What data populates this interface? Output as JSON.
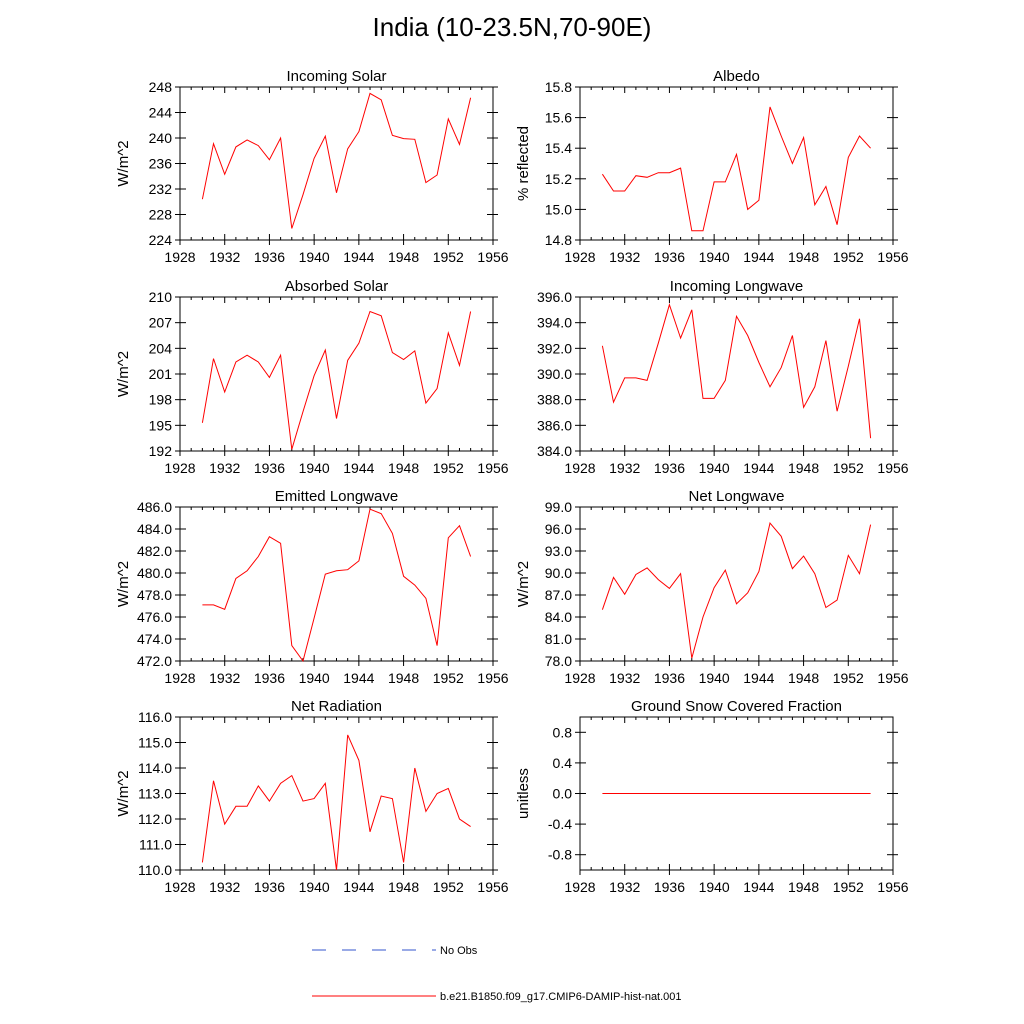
{
  "figure_title": "India (10-23.5N,70-90E)",
  "legend": {
    "entries": [
      {
        "label": "No Obs",
        "color": "#3355cc",
        "style": "dashed"
      },
      {
        "label": "b.e21.B1850.f09_g17.CMIP6-DAMIP-hist-nat.001",
        "color": "#ff0000",
        "style": "solid"
      }
    ]
  },
  "chart_data": [
    {
      "type": "line",
      "title": "Incoming Solar",
      "ylabel": "W/m^2",
      "xlim": [
        1928,
        1956
      ],
      "ylim": [
        224,
        248
      ],
      "xticks": [
        "1928",
        "1932",
        "1936",
        "1940",
        "1944",
        "1948",
        "1952",
        "1956"
      ],
      "yticks": [
        "224",
        "228",
        "232",
        "236",
        "240",
        "244",
        "248"
      ],
      "x": [
        1930,
        1931,
        1932,
        1933,
        1934,
        1935,
        1936,
        1937,
        1938,
        1939,
        1940,
        1941,
        1942,
        1943,
        1944,
        1945,
        1946,
        1947,
        1948,
        1949,
        1950,
        1951,
        1952,
        1953,
        1954
      ],
      "series": [
        {
          "color": "#ff0000",
          "values": [
            230.4,
            239.1,
            234.3,
            238.6,
            239.7,
            238.8,
            236.6,
            240.0,
            225.8,
            231.1,
            236.8,
            240.3,
            231.4,
            238.3,
            241.0,
            247.0,
            246.0,
            240.4,
            239.9,
            239.8,
            233.0,
            234.2,
            243.0,
            239.0,
            246.3
          ]
        }
      ]
    },
    {
      "type": "line",
      "title": "Albedo",
      "ylabel": "% reflected",
      "xlim": [
        1928,
        1956
      ],
      "ylim": [
        14.8,
        15.8
      ],
      "xticks": [
        "1928",
        "1932",
        "1936",
        "1940",
        "1944",
        "1948",
        "1952",
        "1956"
      ],
      "yticks": [
        "14.8",
        "15.0",
        "15.2",
        "15.4",
        "15.6",
        "15.8"
      ],
      "x": [
        1930,
        1931,
        1932,
        1933,
        1934,
        1935,
        1936,
        1937,
        1938,
        1939,
        1940,
        1941,
        1942,
        1943,
        1944,
        1945,
        1946,
        1947,
        1948,
        1949,
        1950,
        1951,
        1952,
        1953,
        1954
      ],
      "series": [
        {
          "color": "#ff0000",
          "values": [
            15.23,
            15.12,
            15.12,
            15.22,
            15.21,
            15.24,
            15.24,
            15.27,
            14.86,
            14.86,
            15.18,
            15.18,
            15.36,
            15.0,
            15.06,
            15.67,
            15.48,
            15.3,
            15.47,
            15.03,
            15.15,
            14.9,
            15.34,
            15.48,
            15.4
          ]
        }
      ]
    },
    {
      "type": "line",
      "title": "Absorbed Solar",
      "ylabel": "W/m^2",
      "xlim": [
        1928,
        1956
      ],
      "ylim": [
        192,
        210
      ],
      "xticks": [
        "1928",
        "1932",
        "1936",
        "1940",
        "1944",
        "1948",
        "1952",
        "1956"
      ],
      "yticks": [
        "192",
        "195",
        "198",
        "201",
        "204",
        "207",
        "210"
      ],
      "x": [
        1930,
        1931,
        1932,
        1933,
        1934,
        1935,
        1936,
        1937,
        1938,
        1939,
        1940,
        1941,
        1942,
        1943,
        1944,
        1945,
        1946,
        1947,
        1948,
        1949,
        1950,
        1951,
        1952,
        1953,
        1954
      ],
      "series": [
        {
          "color": "#ff0000",
          "values": [
            195.3,
            202.8,
            198.9,
            202.4,
            203.2,
            202.4,
            200.6,
            203.2,
            192.2,
            196.6,
            200.8,
            203.8,
            195.8,
            202.6,
            204.6,
            208.3,
            207.8,
            203.5,
            202.7,
            203.7,
            197.6,
            199.3,
            205.8,
            202.0,
            208.3
          ]
        }
      ]
    },
    {
      "type": "line",
      "title": "Incoming Longwave",
      "ylabel": "",
      "xlim": [
        1928,
        1956
      ],
      "ylim": [
        384,
        396
      ],
      "xticks": [
        "1928",
        "1932",
        "1936",
        "1940",
        "1944",
        "1948",
        "1952",
        "1956"
      ],
      "yticks": [
        "384.0",
        "386.0",
        "388.0",
        "390.0",
        "392.0",
        "394.0",
        "396.0"
      ],
      "x": [
        1930,
        1931,
        1932,
        1933,
        1934,
        1935,
        1936,
        1937,
        1938,
        1939,
        1940,
        1941,
        1942,
        1943,
        1944,
        1945,
        1946,
        1947,
        1948,
        1949,
        1950,
        1951,
        1952,
        1953,
        1954
      ],
      "series": [
        {
          "color": "#ff0000",
          "values": [
            392.2,
            387.8,
            389.7,
            389.7,
            389.5,
            392.4,
            395.4,
            392.8,
            395.0,
            388.1,
            388.1,
            389.5,
            394.5,
            393.0,
            390.9,
            389.0,
            390.5,
            393.0,
            387.4,
            389.0,
            392.6,
            387.1,
            390.6,
            394.3,
            385.0
          ]
        }
      ]
    },
    {
      "type": "line",
      "title": "Emitted Longwave",
      "ylabel": "W/m^2",
      "xlim": [
        1928,
        1956
      ],
      "ylim": [
        472,
        486
      ],
      "xticks": [
        "1928",
        "1932",
        "1936",
        "1940",
        "1944",
        "1948",
        "1952",
        "1956"
      ],
      "yticks": [
        "472.0",
        "474.0",
        "476.0",
        "478.0",
        "480.0",
        "482.0",
        "484.0",
        "486.0"
      ],
      "x": [
        1930,
        1931,
        1932,
        1933,
        1934,
        1935,
        1936,
        1937,
        1938,
        1939,
        1940,
        1941,
        1942,
        1943,
        1944,
        1945,
        1946,
        1947,
        1948,
        1949,
        1950,
        1951,
        1952,
        1953,
        1954
      ],
      "series": [
        {
          "color": "#ff0000",
          "values": [
            477.1,
            477.1,
            476.7,
            479.5,
            480.2,
            481.5,
            483.3,
            482.7,
            473.4,
            472.0,
            475.9,
            479.9,
            480.2,
            480.3,
            481.1,
            485.8,
            485.4,
            483.6,
            479.7,
            478.9,
            477.7,
            473.4,
            483.2,
            484.3,
            481.5
          ]
        }
      ]
    },
    {
      "type": "line",
      "title": "Net Longwave",
      "ylabel": "W/m^2",
      "xlim": [
        1928,
        1956
      ],
      "ylim": [
        78,
        99
      ],
      "xticks": [
        "1928",
        "1932",
        "1936",
        "1940",
        "1944",
        "1948",
        "1952",
        "1956"
      ],
      "yticks": [
        "78.0",
        "81.0",
        "84.0",
        "87.0",
        "90.0",
        "93.0",
        "96.0",
        "99.0"
      ],
      "x": [
        1930,
        1931,
        1932,
        1933,
        1934,
        1935,
        1936,
        1937,
        1938,
        1939,
        1940,
        1941,
        1942,
        1943,
        1944,
        1945,
        1946,
        1947,
        1948,
        1949,
        1950,
        1951,
        1952,
        1953,
        1954
      ],
      "series": [
        {
          "color": "#ff0000",
          "values": [
            85.0,
            89.4,
            87.1,
            89.8,
            90.7,
            89.1,
            87.9,
            89.9,
            78.4,
            84.0,
            88.0,
            90.4,
            85.8,
            87.3,
            90.2,
            96.8,
            95.0,
            90.6,
            92.3,
            89.9,
            85.3,
            86.3,
            92.4,
            89.9,
            96.6
          ]
        }
      ]
    },
    {
      "type": "line",
      "title": "Net Radiation",
      "ylabel": "W/m^2",
      "xlim": [
        1928,
        1956
      ],
      "ylim": [
        110,
        116
      ],
      "xticks": [
        "1928",
        "1932",
        "1936",
        "1940",
        "1944",
        "1948",
        "1952",
        "1956"
      ],
      "yticks": [
        "110.0",
        "111.0",
        "112.0",
        "113.0",
        "114.0",
        "115.0",
        "116.0"
      ],
      "x": [
        1930,
        1931,
        1932,
        1933,
        1934,
        1935,
        1936,
        1937,
        1938,
        1939,
        1940,
        1941,
        1942,
        1943,
        1944,
        1945,
        1946,
        1947,
        1948,
        1949,
        1950,
        1951,
        1952,
        1953,
        1954
      ],
      "series": [
        {
          "color": "#ff0000",
          "values": [
            110.3,
            113.5,
            111.8,
            112.5,
            112.5,
            113.3,
            112.7,
            113.4,
            113.7,
            112.7,
            112.8,
            113.4,
            110.0,
            115.3,
            114.3,
            111.5,
            112.9,
            112.8,
            110.3,
            114.0,
            112.3,
            113.0,
            113.2,
            112.0,
            111.7
          ]
        }
      ]
    },
    {
      "type": "line",
      "title": "Ground Snow Covered Fraction",
      "ylabel": "unitless",
      "xlim": [
        1928,
        1956
      ],
      "ylim": [
        -1.0,
        1.0
      ],
      "xticks": [
        "1928",
        "1932",
        "1936",
        "1940",
        "1944",
        "1948",
        "1952",
        "1956"
      ],
      "yticks": [
        "-0.8",
        "-0.4",
        "0.0",
        "0.4",
        "0.8"
      ],
      "ytick_values": [
        -0.8,
        -0.4,
        0.0,
        0.4,
        0.8
      ],
      "x": [
        1930,
        1931,
        1932,
        1933,
        1934,
        1935,
        1936,
        1937,
        1938,
        1939,
        1940,
        1941,
        1942,
        1943,
        1944,
        1945,
        1946,
        1947,
        1948,
        1949,
        1950,
        1951,
        1952,
        1953,
        1954
      ],
      "series": [
        {
          "color": "#ff0000",
          "values": [
            0,
            0,
            0,
            0,
            0,
            0,
            0,
            0,
            0,
            0,
            0,
            0,
            0,
            0,
            0,
            0,
            0,
            0,
            0,
            0,
            0,
            0,
            0,
            0,
            0
          ]
        }
      ]
    }
  ]
}
